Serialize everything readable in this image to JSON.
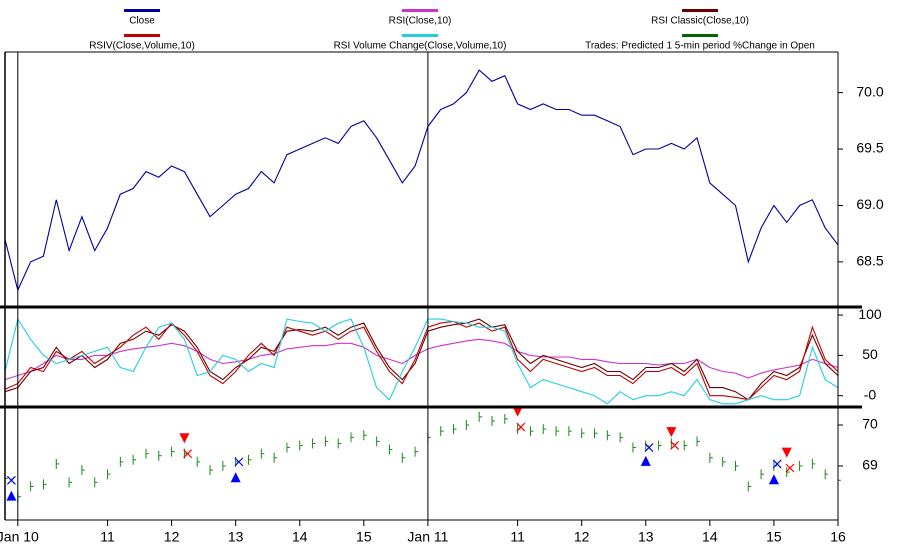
{
  "chart_data": [
    {
      "type": "line",
      "x": [
        -0.2,
        0,
        0.2,
        0.4,
        0.6,
        0.8,
        1,
        1.2,
        1.4,
        1.6,
        1.8,
        2,
        2.2,
        2.4,
        2.6,
        2.8,
        3,
        3.2,
        3.4,
        3.6,
        3.8,
        4,
        4.2,
        4.4,
        4.6,
        4.8,
        5,
        5.2,
        5.4,
        5.6,
        5.8,
        6,
        6.2,
        6.4,
        6.6,
        6.8,
        7,
        7.2,
        7.4,
        7.6,
        7.8,
        8,
        8.2,
        8.4,
        8.6,
        8.8,
        9,
        9.2,
        9.4,
        9.6,
        9.8,
        10,
        10.2,
        10.4,
        10.6,
        10.8,
        11,
        11.2,
        11.4,
        11.6,
        11.8,
        12,
        12.2,
        12.4,
        12.6,
        12.8
      ],
      "series": [
        {
          "name": "Close",
          "color": "#0000a0",
          "values": [
            68.7,
            68.25,
            68.5,
            68.55,
            69.05,
            68.6,
            68.9,
            68.6,
            68.8,
            69.1,
            69.15,
            69.3,
            69.25,
            69.35,
            69.3,
            69.1,
            68.9,
            69.0,
            69.1,
            69.15,
            69.3,
            69.2,
            69.45,
            69.5,
            69.55,
            69.6,
            69.55,
            69.7,
            69.75,
            69.6,
            69.4,
            69.2,
            69.35,
            69.7,
            69.85,
            69.9,
            70.0,
            70.2,
            70.1,
            70.15,
            69.9,
            69.85,
            69.9,
            69.85,
            69.85,
            69.8,
            69.8,
            69.75,
            69.7,
            69.45,
            69.5,
            69.5,
            69.55,
            69.5,
            69.6,
            69.2,
            69.1,
            69.0,
            68.5,
            68.8,
            69.0,
            68.85,
            69.0,
            69.05,
            68.8,
            68.65
          ]
        }
      ],
      "xlim": [
        -0.2,
        12.8
      ],
      "ylim": [
        68.1,
        70.36
      ],
      "yticks": [
        {
          "value": 68.5,
          "label": "68.5"
        },
        {
          "value": 69,
          "label": "69.0"
        },
        69.5,
        {
          "value": 70,
          "label": "70.0"
        }
      ]
    },
    {
      "type": "line",
      "x": [
        -0.2,
        0,
        0.2,
        0.4,
        0.6,
        0.8,
        1,
        1.2,
        1.4,
        1.6,
        1.8,
        2,
        2.2,
        2.4,
        2.6,
        2.8,
        3,
        3.2,
        3.4,
        3.6,
        3.8,
        4,
        4.2,
        4.4,
        4.6,
        4.8,
        5,
        5.2,
        5.4,
        5.6,
        5.8,
        6,
        6.2,
        6.4,
        6.6,
        6.8,
        7,
        7.2,
        7.4,
        7.6,
        7.8,
        8,
        8.2,
        8.4,
        8.6,
        8.8,
        9,
        9.2,
        9.4,
        9.6,
        9.8,
        10,
        10.2,
        10.4,
        10.6,
        10.8,
        11,
        11.2,
        11.4,
        11.6,
        11.8,
        12,
        12.2,
        12.4,
        12.6,
        12.8
      ],
      "series": [
        {
          "name": "RSI(Close,10)",
          "color": "#cc33cc",
          "values": [
            20,
            25,
            30,
            40,
            50,
            45,
            45,
            50,
            50,
            55,
            58,
            60,
            62,
            65,
            62,
            55,
            45,
            40,
            42,
            45,
            50,
            52,
            58,
            60,
            62,
            62,
            65,
            65,
            60,
            50,
            45,
            40,
            50,
            58,
            62,
            65,
            68,
            70,
            68,
            65,
            55,
            50,
            48,
            48,
            48,
            45,
            45,
            42,
            40,
            40,
            40,
            38,
            40,
            40,
            45,
            35,
            30,
            28,
            22,
            28,
            32,
            35,
            38,
            45,
            40,
            35
          ]
        },
        {
          "name": "RSI Classic(Close,10)",
          "color": "#6b0000",
          "values": [
            5,
            10,
            30,
            35,
            60,
            40,
            50,
            35,
            45,
            65,
            70,
            80,
            75,
            88,
            80,
            60,
            30,
            20,
            35,
            45,
            60,
            55,
            80,
            82,
            80,
            85,
            75,
            85,
            90,
            60,
            35,
            20,
            40,
            80,
            85,
            88,
            90,
            95,
            85,
            88,
            55,
            40,
            50,
            45,
            40,
            35,
            40,
            30,
            30,
            20,
            35,
            35,
            40,
            30,
            45,
            10,
            10,
            5,
            -5,
            15,
            30,
            25,
            35,
            75,
            40,
            25
          ]
        },
        {
          "name": "RSIV(Close,Volume,10)",
          "color": "#c00000",
          "values": [
            8,
            15,
            35,
            30,
            55,
            45,
            55,
            40,
            50,
            60,
            75,
            85,
            70,
            90,
            75,
            55,
            25,
            15,
            30,
            50,
            65,
            50,
            85,
            80,
            75,
            80,
            70,
            80,
            85,
            55,
            30,
            15,
            45,
            85,
            90,
            92,
            85,
            90,
            80,
            85,
            45,
            30,
            45,
            40,
            35,
            30,
            35,
            25,
            25,
            15,
            30,
            30,
            35,
            25,
            40,
            0,
            0,
            -2,
            -5,
            10,
            25,
            20,
            30,
            85,
            45,
            30
          ]
        },
        {
          "name": "RSI Volume Change(Close,Volume,10)",
          "color": "#20d0e0",
          "values": [
            30,
            95,
            70,
            50,
            40,
            45,
            50,
            55,
            60,
            35,
            30,
            60,
            85,
            90,
            70,
            25,
            30,
            50,
            45,
            30,
            40,
            35,
            95,
            92,
            90,
            80,
            90,
            95,
            60,
            10,
            -5,
            30,
            60,
            95,
            95,
            92,
            90,
            85,
            85,
            80,
            40,
            10,
            20,
            15,
            10,
            5,
            0,
            -10,
            5,
            -5,
            0,
            0,
            5,
            0,
            20,
            -5,
            -10,
            -10,
            -5,
            0,
            -5,
            -5,
            0,
            60,
            20,
            10
          ]
        }
      ],
      "xlim": [
        -0.2,
        12.8
      ],
      "ylim": [
        -14,
        110
      ],
      "yticks": [
        {
          "value": 0,
          "label": "-0"
        },
        50,
        100
      ]
    },
    {
      "type": "ohlc",
      "x": [
        -0.2,
        0,
        0.2,
        0.4,
        0.6,
        0.8,
        1,
        1.2,
        1.4,
        1.6,
        1.8,
        2,
        2.2,
        2.4,
        2.6,
        2.8,
        3,
        3.2,
        3.4,
        3.6,
        3.8,
        4,
        4.2,
        4.4,
        4.6,
        4.8,
        5,
        5.2,
        5.4,
        5.6,
        5.8,
        6,
        6.2,
        6.4,
        6.6,
        6.8,
        7,
        7.2,
        7.4,
        7.6,
        7.8,
        8,
        8.2,
        8.4,
        8.6,
        8.8,
        9,
        9.2,
        9.4,
        9.6,
        9.8,
        10,
        10.2,
        10.4,
        10.6,
        10.8,
        11,
        11.2,
        11.4,
        11.6,
        11.8,
        12,
        12.2,
        12.4,
        12.6,
        12.8
      ],
      "series": [
        {
          "name": "Trades: Predicted 1 5-min period %Change in Open",
          "color": "#006400",
          "bar_color": "#1a8a1a",
          "values": [
            68.7,
            68.25,
            68.5,
            68.55,
            69.05,
            68.6,
            68.9,
            68.6,
            68.8,
            69.1,
            69.15,
            69.3,
            69.25,
            69.35,
            69.3,
            69.1,
            68.9,
            69.0,
            69.1,
            69.15,
            69.3,
            69.2,
            69.45,
            69.5,
            69.55,
            69.6,
            69.55,
            69.7,
            69.75,
            69.6,
            69.4,
            69.2,
            69.35,
            69.7,
            69.85,
            69.9,
            70.0,
            70.2,
            70.1,
            70.15,
            69.9,
            69.85,
            69.9,
            69.85,
            69.85,
            69.8,
            69.8,
            69.75,
            69.7,
            69.45,
            69.5,
            69.5,
            69.55,
            69.5,
            69.6,
            69.2,
            69.1,
            69.0,
            68.5,
            68.8,
            69.0,
            68.85,
            69.0,
            69.05,
            68.8,
            68.65
          ]
        }
      ],
      "buy_signals": {
        "color": "#0000ff",
        "x": [
          -0.1,
          3.4,
          9.8,
          11.8
        ],
        "values": [
          68.25,
          68.7,
          69.1,
          68.65
        ]
      },
      "sell_signals": {
        "color": "#ff0000",
        "x": [
          2.6,
          7.8,
          10.2,
          12.0
        ],
        "values": [
          69.7,
          70.35,
          69.85,
          69.35
        ]
      },
      "buy_fills": {
        "color": "#0000ff",
        "x": [
          -0.1,
          3.45,
          9.85,
          11.85
        ],
        "values": [
          68.65,
          69.1,
          69.45,
          69.05
        ]
      },
      "sell_fills": {
        "color": "#ff0000",
        "x": [
          2.65,
          7.85,
          10.25,
          12.05
        ],
        "values": [
          69.3,
          69.95,
          69.5,
          68.95
        ]
      },
      "xlim": [
        -0.2,
        12.8
      ],
      "ylim": [
        67.68,
        70.44
      ],
      "yticks": [
        69,
        70
      ],
      "xticks": [
        {
          "value": 0,
          "label": "Jan 10"
        },
        1.4,
        2.4,
        3.4,
        4.4,
        5.4,
        {
          "value": 6.4,
          "label": "Jan 11"
        },
        7.8,
        8.8,
        9.8,
        10.8,
        11.8,
        12.8
      ],
      "xtick_labels": [
        "Jan 10",
        "11",
        "12",
        "13",
        "14",
        "15",
        "Jan 11",
        "11",
        "12",
        "13",
        "14",
        "15",
        "16"
      ]
    }
  ]
}
